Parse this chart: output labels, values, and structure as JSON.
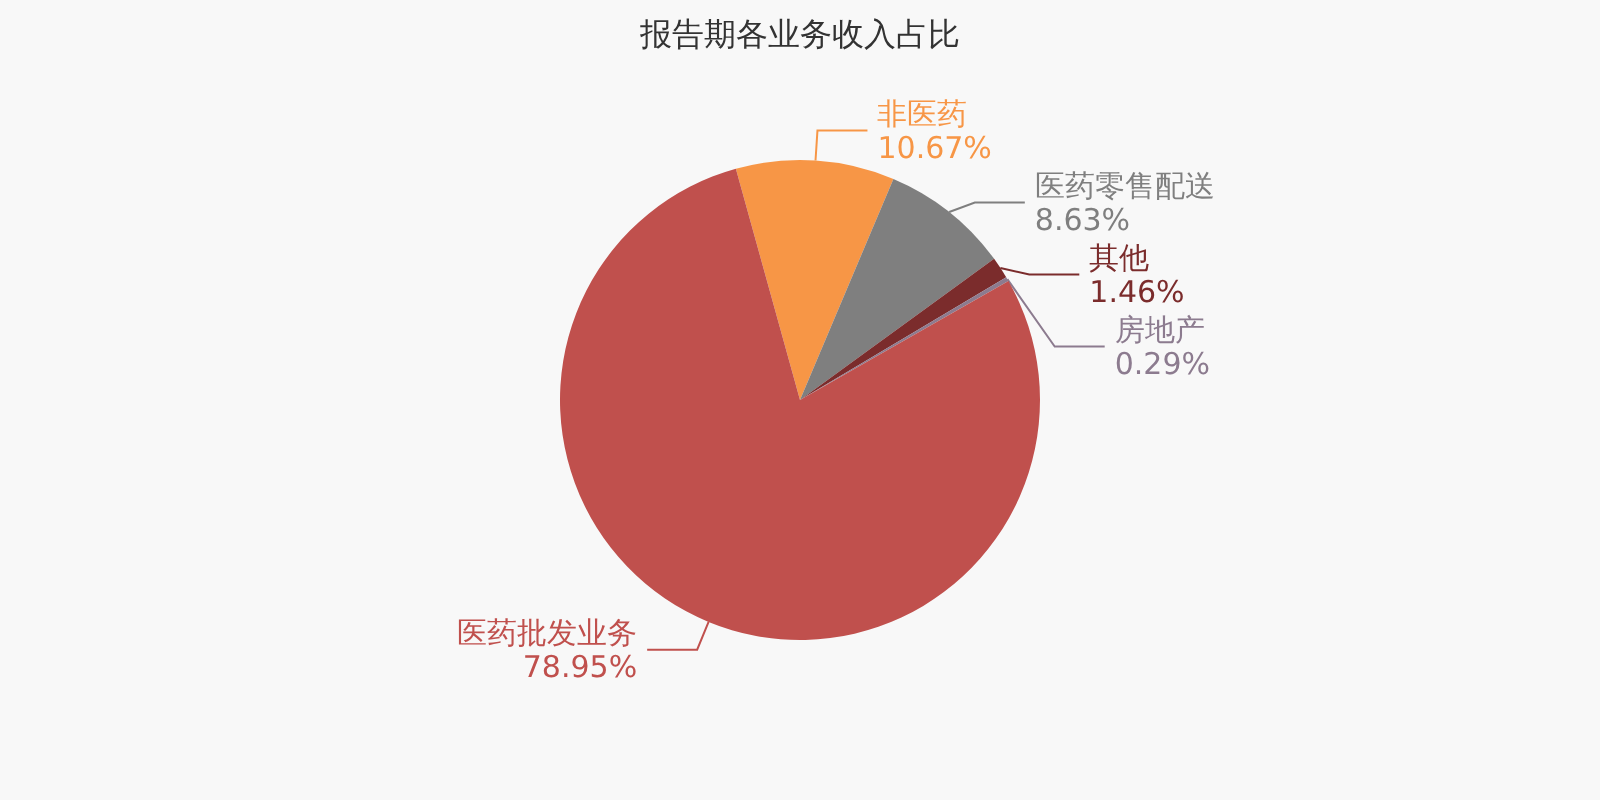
{
  "chart_data": {
    "type": "pie",
    "title": "报告期各业务收入占比",
    "categories": [
      "非医药",
      "医药零售配送",
      "其他",
      "房地产",
      "医药批发业务"
    ],
    "values": [
      10.67,
      8.63,
      1.46,
      0.29,
      78.95
    ],
    "colors": [
      "#f79646",
      "#7f7f7f",
      "#7b2c2c",
      "#8c7b8f",
      "#c0504d"
    ],
    "value_labels": [
      "10.67%",
      "8.63%",
      "1.46%",
      "0.29%",
      "78.95%"
    ],
    "legend": false
  }
}
